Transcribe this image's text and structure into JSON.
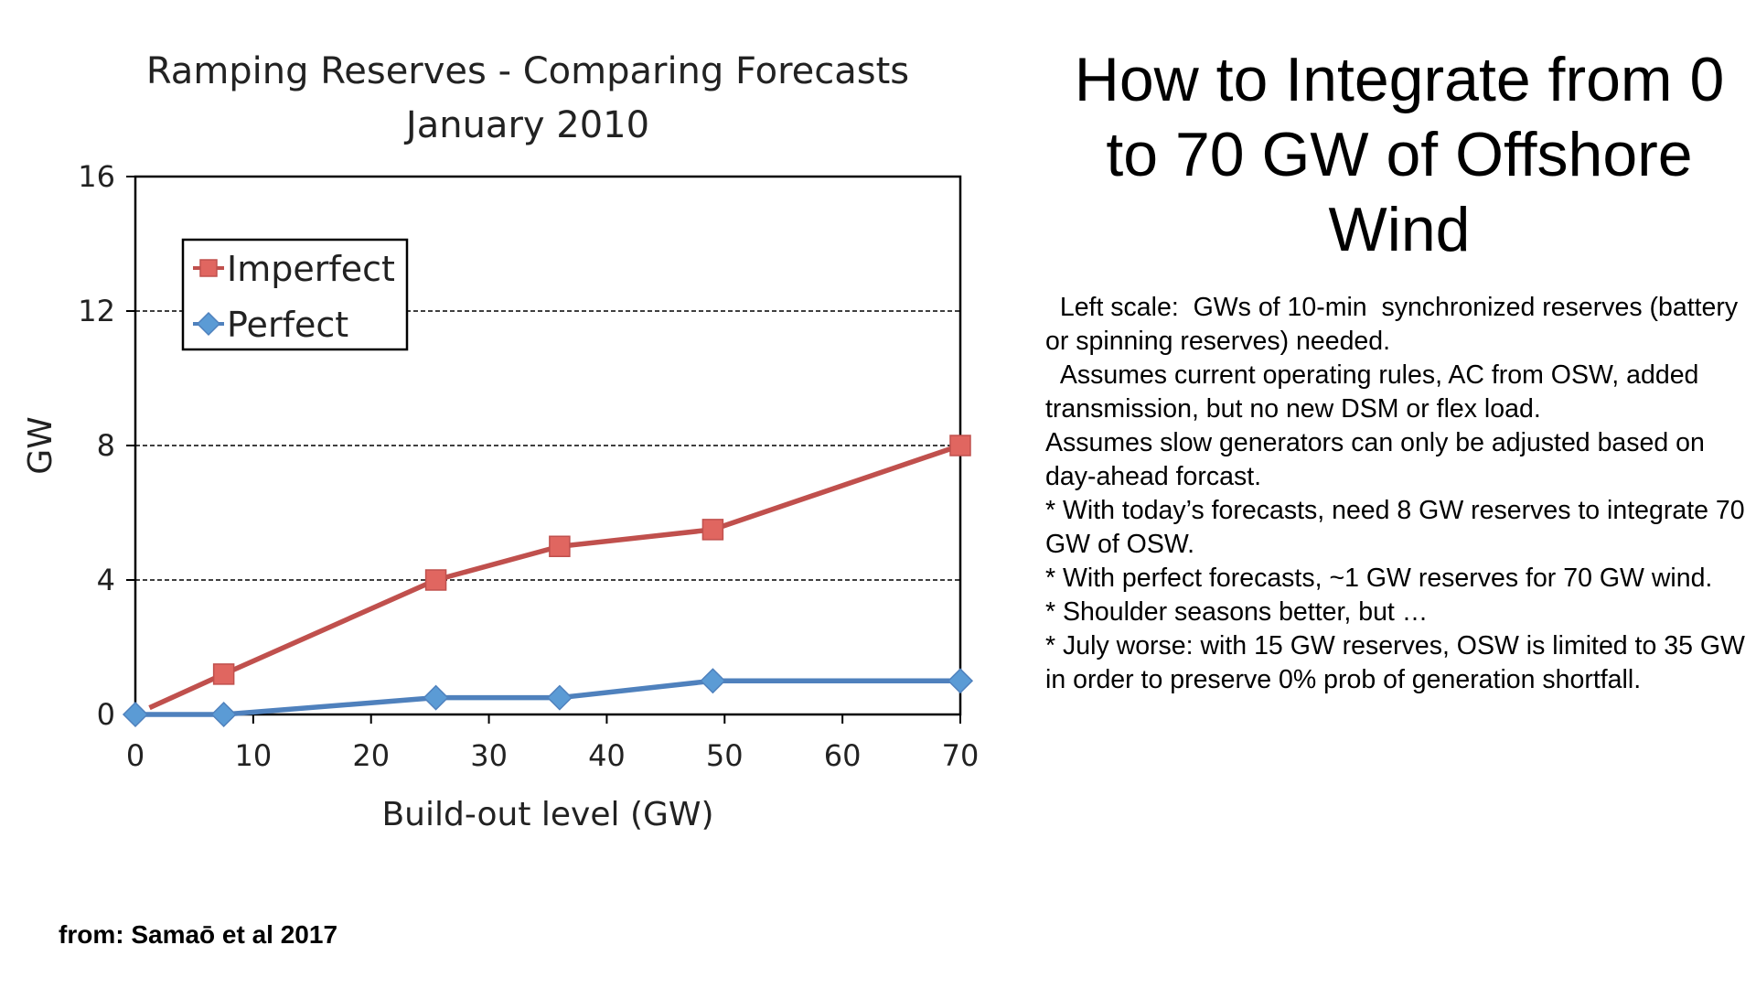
{
  "slide": {
    "title": "How to Integrate from 0 to 70 GW of Offshore Wind",
    "notes": [
      "  Left scale:  GWs of 10-min  synchronized reserves (battery or spinning reserves) needed.",
      "  Assumes current operating rules, AC from OSW, added transmission, but no new DSM or flex load.",
      "Assumes slow generators can only be adjusted based on day-ahead forcast.",
      "* With today’s forecasts, need 8 GW reserves to integrate 70 GW of OSW.",
      "* With perfect forecasts, ~1 GW reserves for 70 GW wind.",
      "* Shoulder seasons better, but …",
      "* July worse: with 15 GW reserves, OSW is limited to 35 GW in order to preserve 0% prob of generation shortfall."
    ],
    "source": "from:  Samaō et al 2017"
  },
  "chart_data": {
    "type": "line",
    "title": "Ramping Reserves - Comparing Forecasts",
    "subtitle": "January 2010",
    "xlabel": "Build-out level (GW)",
    "ylabel": "GW",
    "xlim": [
      0,
      70
    ],
    "ylim": [
      0,
      16
    ],
    "xticks": [
      "0",
      "10",
      "20",
      "30",
      "40",
      "50",
      "60",
      "70"
    ],
    "yticks": [
      "0",
      "4",
      "8",
      "12",
      "16"
    ],
    "grid": "horizontal dashed",
    "legend_position": "top-left",
    "series": [
      {
        "name": "Imperfect",
        "color": "#c0504d",
        "marker_fill": "#e06660",
        "marker": "square",
        "x": [
          7.5,
          25.5,
          36,
          49,
          70
        ],
        "y": [
          1.2,
          4.0,
          5.0,
          5.5,
          8.0
        ]
      },
      {
        "name": "Perfect",
        "color": "#4f81bd",
        "marker_fill": "#5b9bd5",
        "marker": "diamond",
        "x": [
          0,
          7.5,
          25.5,
          36,
          49,
          70
        ],
        "y": [
          0,
          0,
          0.5,
          0.5,
          1.0,
          1.0
        ]
      }
    ]
  }
}
